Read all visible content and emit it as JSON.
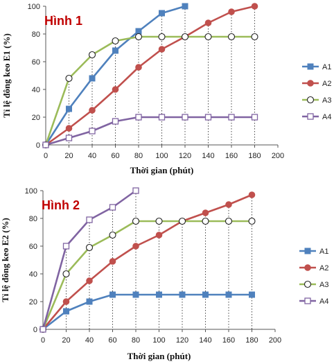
{
  "chart_data": [
    {
      "type": "line",
      "title": "Hình 1",
      "xlabel": "Thời gian (phút)",
      "ylabel": "Tỉ lệ đông keo E1 (%)",
      "xlim": [
        0,
        200
      ],
      "ylim": [
        0,
        100
      ],
      "xticks": [
        0,
        20,
        40,
        60,
        80,
        100,
        120,
        140,
        160,
        180,
        200
      ],
      "yticks": [
        0,
        20,
        40,
        60,
        80,
        100
      ],
      "grid": false,
      "legend_position": "right",
      "drop_lines": true,
      "series": [
        {
          "name": "A1",
          "color": "#4f81bd",
          "marker": "square-filled",
          "x": [
            0,
            20,
            40,
            60,
            80,
            100,
            120
          ],
          "y": [
            0,
            26,
            48,
            68,
            82,
            95,
            100
          ]
        },
        {
          "name": "A2",
          "color": "#c0504d",
          "marker": "circle-filled",
          "x": [
            0,
            20,
            40,
            60,
            80,
            100,
            120,
            140,
            160,
            180
          ],
          "y": [
            0,
            12,
            25,
            40,
            56,
            69,
            78,
            88,
            96,
            100
          ]
        },
        {
          "name": "A3",
          "color": "#9bbb59",
          "marker": "circle-open",
          "x": [
            0,
            20,
            40,
            60,
            80,
            100,
            120,
            140,
            160,
            180
          ],
          "y": [
            0,
            48,
            65,
            75,
            78,
            78,
            78,
            78,
            78,
            78
          ]
        },
        {
          "name": "A4",
          "color": "#8064a2",
          "marker": "square-open",
          "x": [
            0,
            20,
            40,
            60,
            80,
            100,
            120,
            140,
            160,
            180
          ],
          "y": [
            0,
            5,
            10,
            17,
            20,
            20,
            20,
            20,
            20,
            20
          ]
        }
      ]
    },
    {
      "type": "line",
      "title": "Hình 2",
      "xlabel": "Thời gian (phút)",
      "ylabel": "Tỉ lệ đông keo E2 (%)",
      "xlim": [
        0,
        200
      ],
      "ylim": [
        0,
        100
      ],
      "xticks": [
        0,
        20,
        40,
        60,
        80,
        100,
        120,
        140,
        160,
        180,
        200
      ],
      "yticks": [
        0,
        20,
        40,
        60,
        80,
        100
      ],
      "grid": false,
      "legend_position": "right",
      "drop_lines": true,
      "series": [
        {
          "name": "A1",
          "color": "#4f81bd",
          "marker": "square-filled",
          "x": [
            0,
            20,
            40,
            60,
            80,
            100,
            120,
            140,
            160,
            180
          ],
          "y": [
            0,
            13,
            20,
            25,
            25,
            25,
            25,
            25,
            25,
            25
          ]
        },
        {
          "name": "A2",
          "color": "#c0504d",
          "marker": "circle-filled",
          "x": [
            0,
            20,
            40,
            60,
            80,
            100,
            120,
            140,
            160,
            180
          ],
          "y": [
            0,
            20,
            35,
            49,
            60,
            68,
            78,
            84,
            90,
            97
          ]
        },
        {
          "name": "A3",
          "color": "#9bbb59",
          "marker": "circle-open",
          "x": [
            0,
            20,
            40,
            60,
            80,
            100,
            120,
            140,
            160,
            180
          ],
          "y": [
            0,
            40,
            59,
            68,
            78,
            78,
            78,
            78,
            78,
            78
          ]
        },
        {
          "name": "A4",
          "color": "#8064a2",
          "marker": "square-open",
          "x": [
            0,
            20,
            40,
            60,
            80
          ],
          "y": [
            0,
            60,
            79,
            88,
            100
          ]
        }
      ]
    }
  ]
}
